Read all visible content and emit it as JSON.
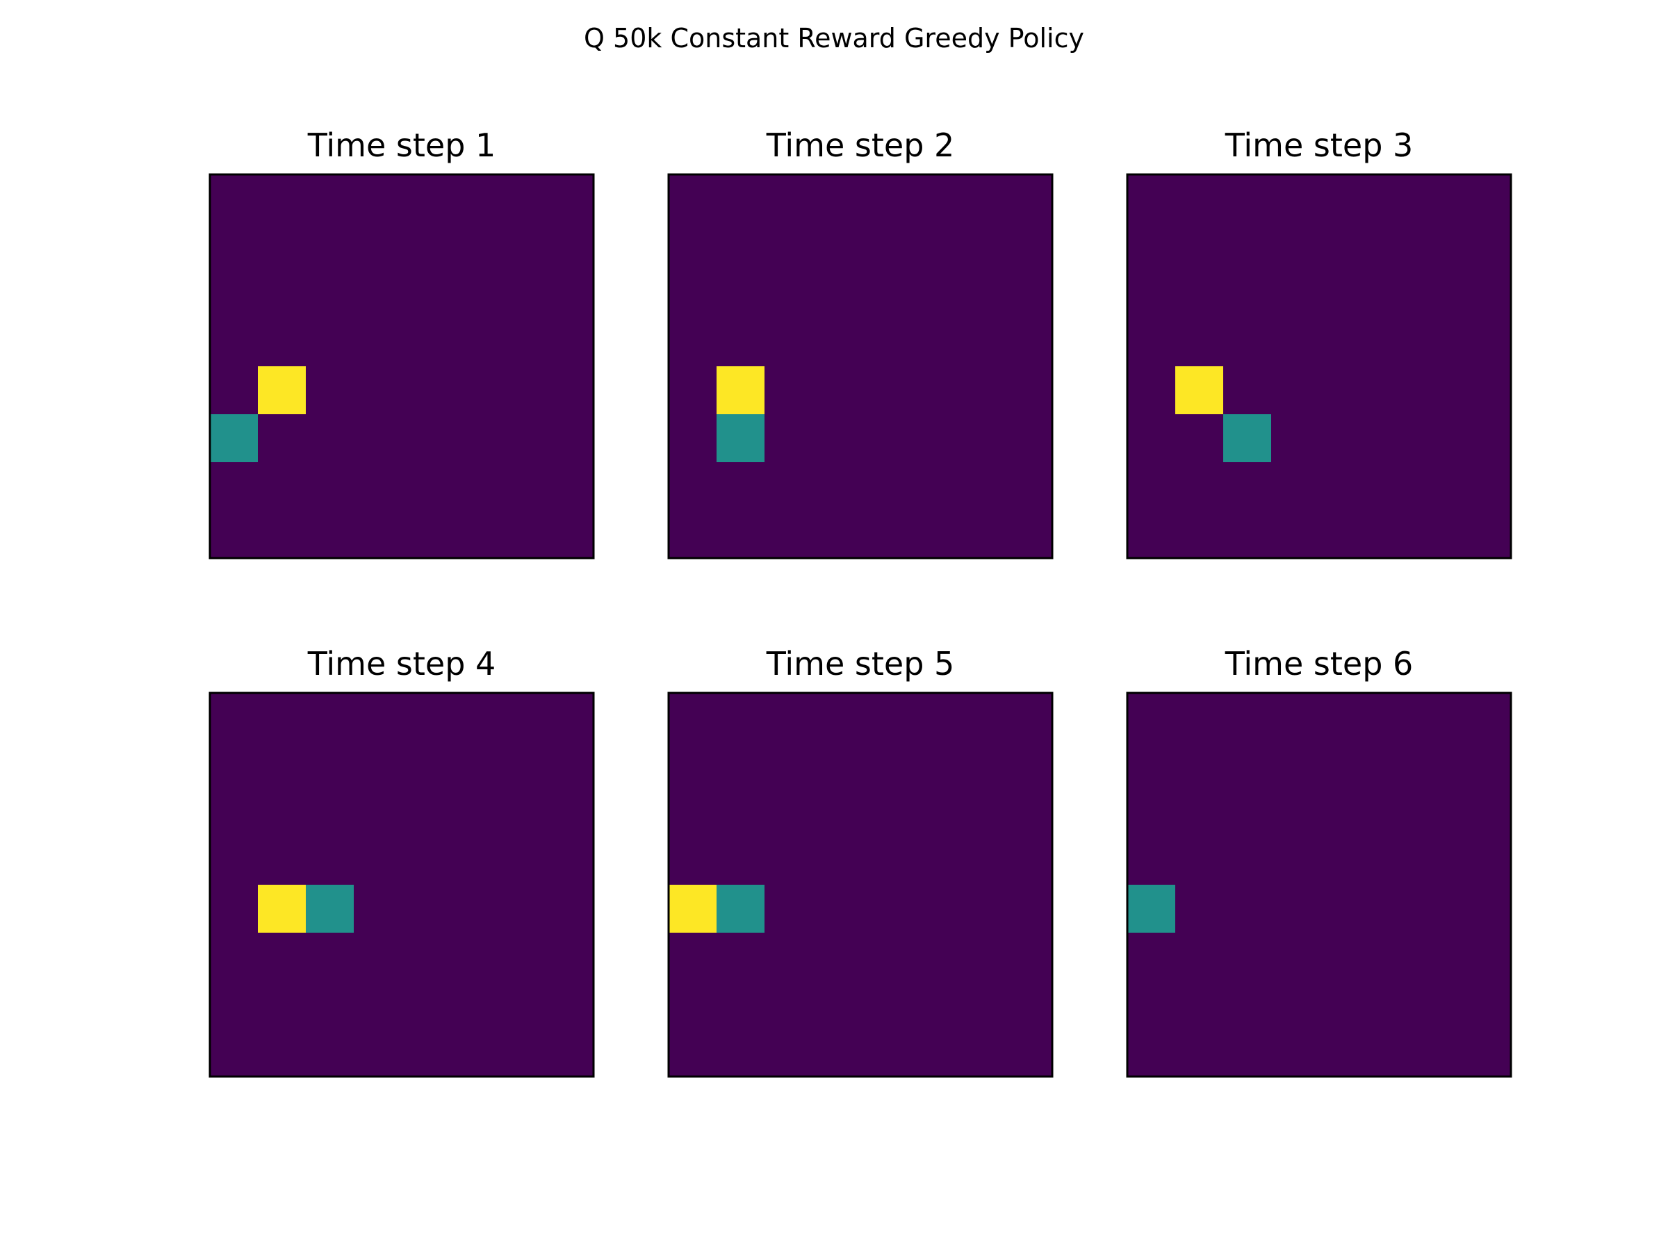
{
  "figure": {
    "title": "Q 50k Constant Reward Greedy Policy"
  },
  "colors": {
    "background": "#440154",
    "agent": "#fde725",
    "target": "#21918c",
    "frame": "#000000"
  },
  "chart_data": {
    "type": "heatmap",
    "title": "Q 50k Constant Reward Greedy Policy",
    "grid_size": [
      8,
      8
    ],
    "cell_values": {
      "background": 0,
      "target": 1,
      "agent": 2
    },
    "colormap": "viridis",
    "axes_ticks": false,
    "panels": [
      {
        "title": "Time step 1",
        "agent": [
          1,
          4
        ],
        "target": [
          0,
          5
        ]
      },
      {
        "title": "Time step 2",
        "agent": [
          1,
          4
        ],
        "target": [
          1,
          5
        ]
      },
      {
        "title": "Time step 3",
        "agent": [
          1,
          4
        ],
        "target": [
          2,
          5
        ]
      },
      {
        "title": "Time step 4",
        "agent": [
          1,
          4
        ],
        "target": [
          2,
          4
        ]
      },
      {
        "title": "Time step 5",
        "agent": [
          0,
          4
        ],
        "target": [
          1,
          4
        ]
      },
      {
        "title": "Time step 6",
        "agent": null,
        "target": [
          0,
          4
        ]
      }
    ]
  }
}
